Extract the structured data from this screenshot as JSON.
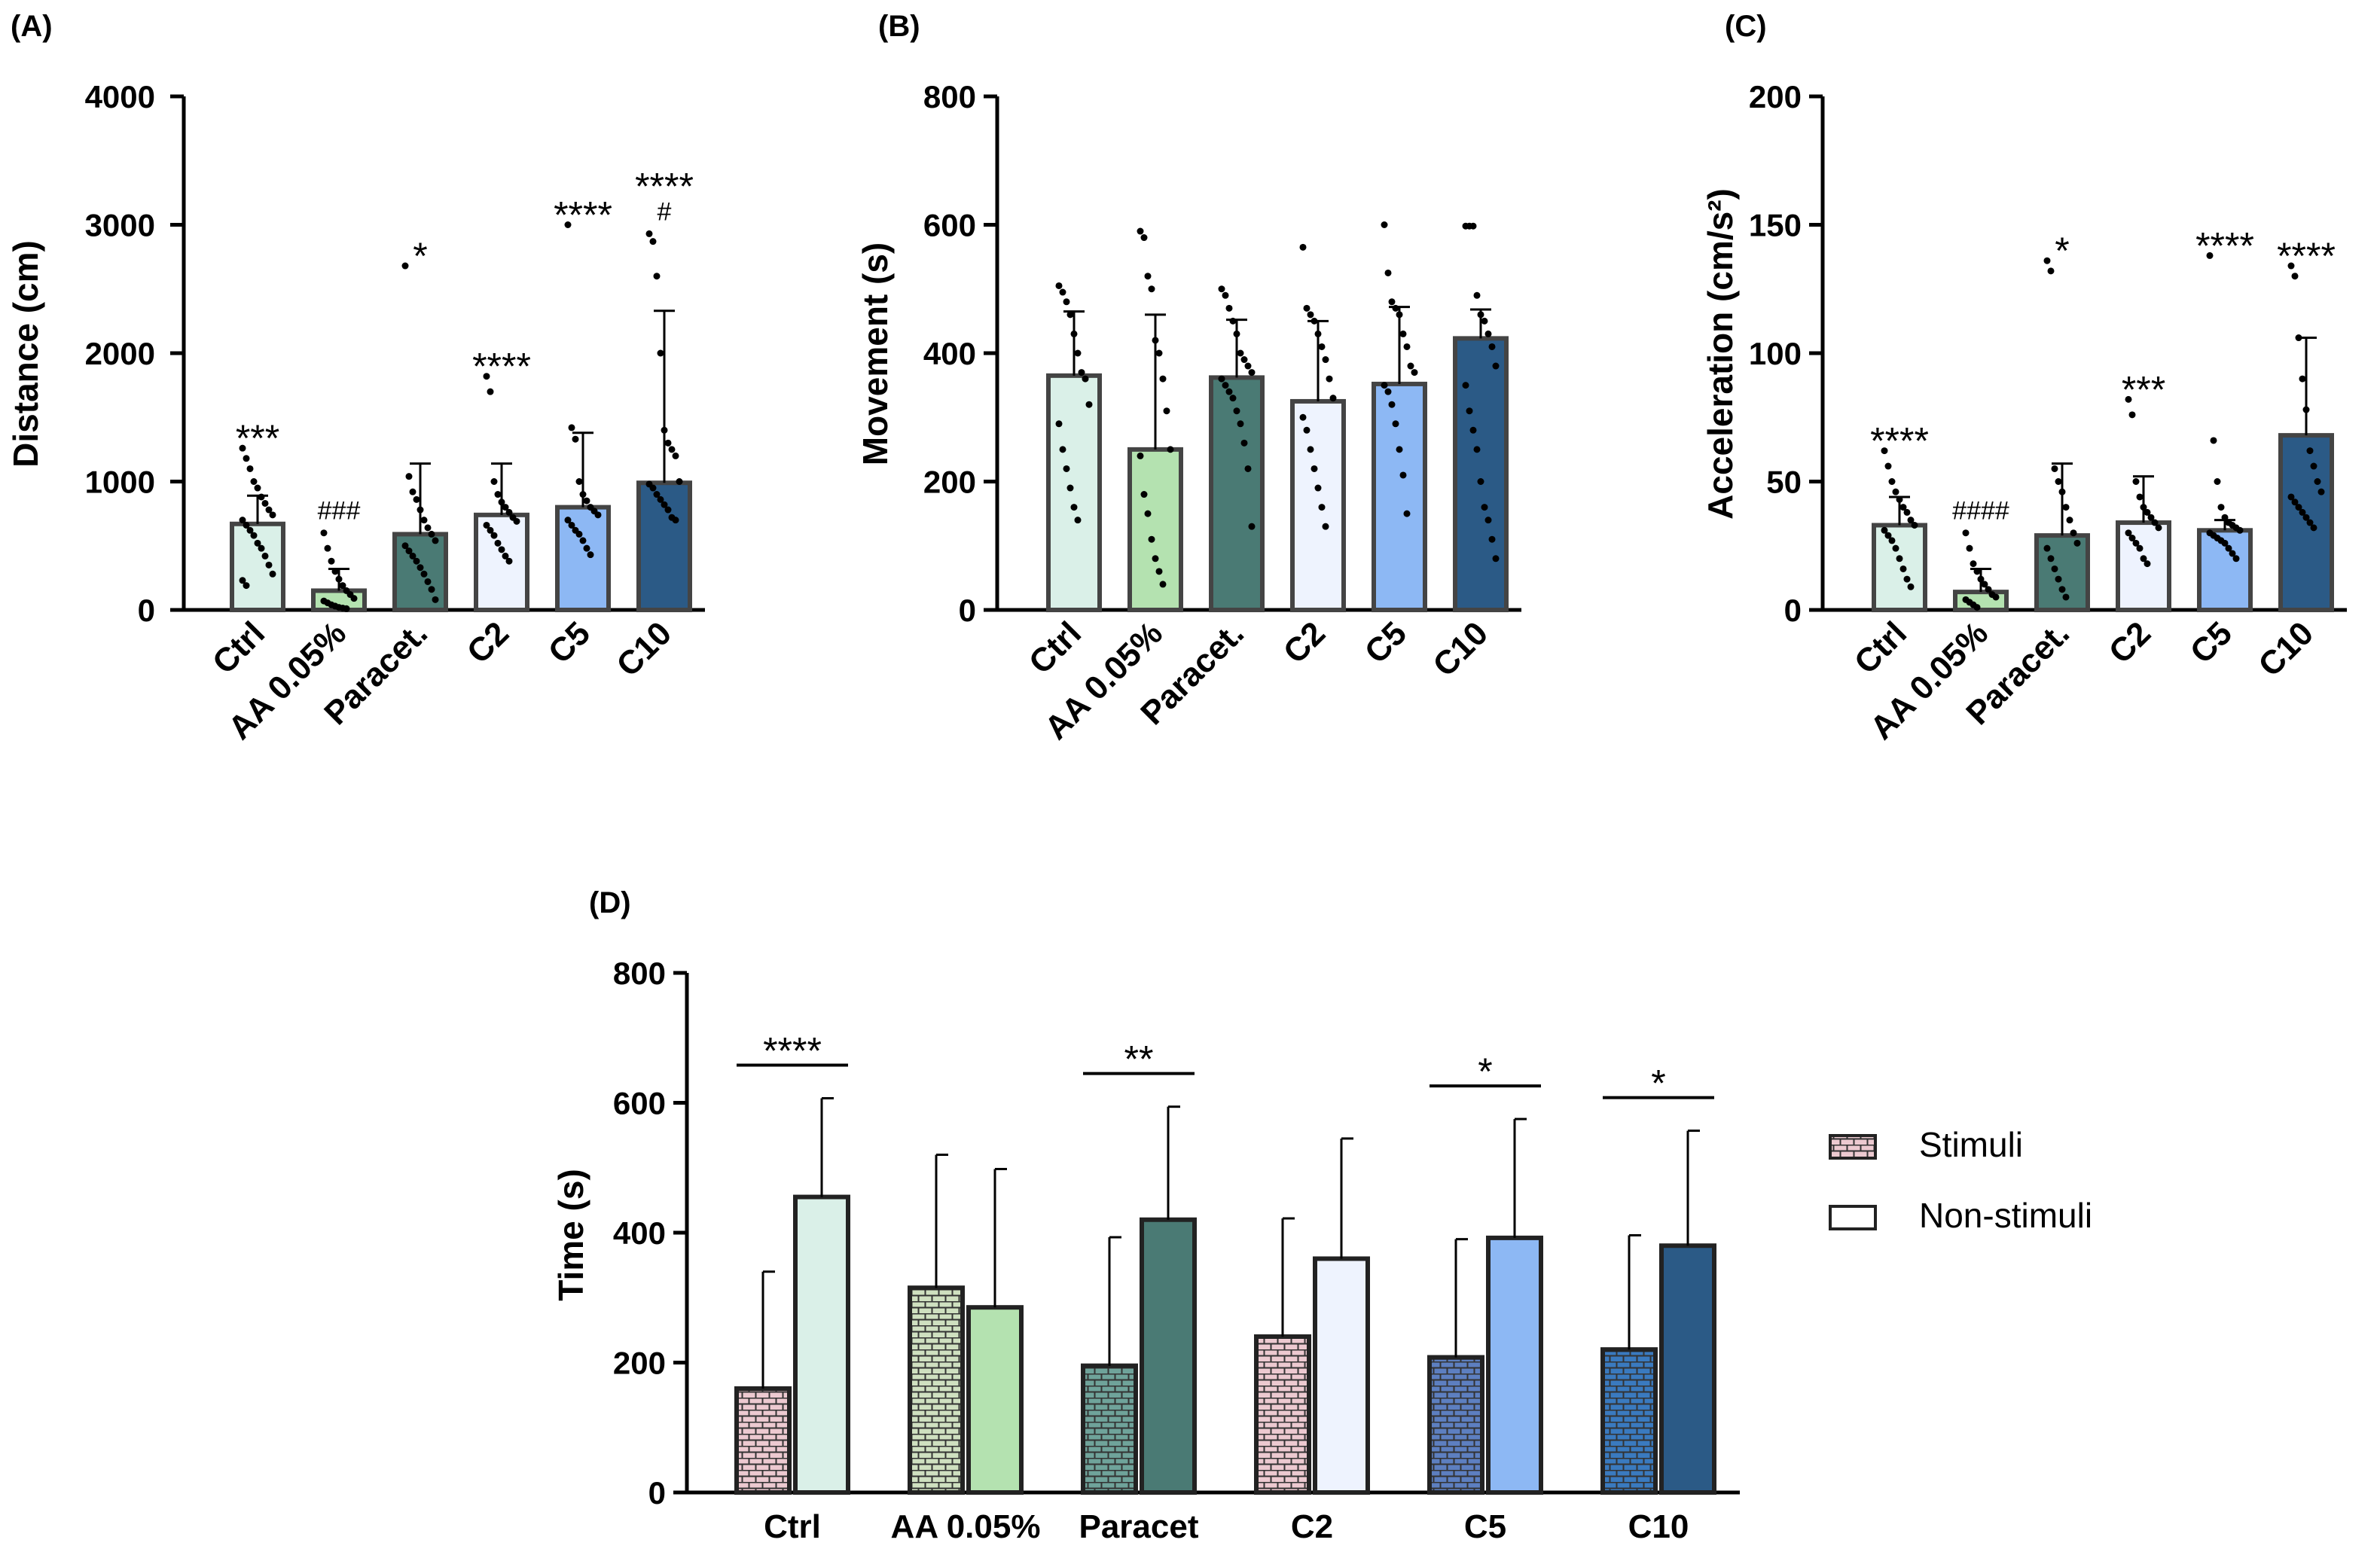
{
  "chart_data": [
    {
      "panel_label": "(A)",
      "type": "bar",
      "ylabel": "Distance (cm)",
      "ylim": [
        0,
        4000
      ],
      "yticks": [
        0,
        1000,
        2000,
        3000,
        4000
      ],
      "categories": [
        "Ctrl",
        "AA 0.05%",
        "Paracet.",
        "C2",
        "C5",
        "C10"
      ],
      "values": [
        670,
        150,
        590,
        740,
        800,
        990
      ],
      "sd": [
        220,
        170,
        550,
        400,
        580,
        1340
      ],
      "colors": [
        "#daf0e8",
        "#b4e2b0",
        "#4a7a74",
        "#eef3fe",
        "#8db8f4",
        "#2b5a86"
      ],
      "annotations": [
        [
          "***"
        ],
        [
          "###"
        ],
        [
          "*"
        ],
        [
          "****"
        ],
        [
          "****"
        ],
        [
          "****",
          "#"
        ]
      ],
      "points": [
        [
          1260,
          1180,
          1100,
          1000,
          950,
          880,
          830,
          780,
          740,
          700,
          660,
          620,
          580,
          520,
          480,
          420,
          350,
          280,
          230,
          190
        ],
        [
          600,
          480,
          380,
          300,
          240,
          190,
          150,
          120,
          90,
          70,
          55,
          40,
          30,
          20,
          15,
          10
        ],
        [
          2680,
          1040,
          920,
          860,
          780,
          700,
          640,
          590,
          540,
          500,
          460,
          420,
          380,
          330,
          280,
          220,
          160,
          80
        ],
        [
          1820,
          1700,
          1000,
          900,
          840,
          800,
          760,
          720,
          690,
          660,
          620,
          580,
          520,
          470,
          420,
          380
        ],
        [
          3000,
          1420,
          1330,
          1000,
          900,
          850,
          800,
          770,
          740,
          700,
          660,
          620,
          590,
          540,
          480,
          430
        ],
        [
          2930,
          2870,
          2600,
          2000,
          1400,
          1300,
          1250,
          1200,
          1000,
          980,
          950,
          900,
          860,
          820,
          780,
          720,
          700
        ]
      ]
    },
    {
      "panel_label": "(B)",
      "type": "bar",
      "ylabel": "Movement (s)",
      "ylim": [
        0,
        800
      ],
      "yticks": [
        0,
        200,
        400,
        600,
        800
      ],
      "categories": [
        "Ctrl",
        "AA 0.05%",
        "Paracet.",
        "C2",
        "C5",
        "C10"
      ],
      "values": [
        365,
        250,
        362,
        325,
        352,
        423
      ],
      "sd": [
        100,
        210,
        90,
        125,
        120,
        45
      ],
      "colors": [
        "#daf0e8",
        "#b4e2b0",
        "#4a7a74",
        "#eef3fe",
        "#8db8f4",
        "#2b5a86"
      ],
      "annotations": [
        [],
        [],
        [],
        [],
        [],
        []
      ],
      "points": [
        [
          505,
          495,
          480,
          460,
          430,
          400,
          370,
          360,
          320,
          290,
          250,
          220,
          190,
          160,
          140
        ],
        [
          590,
          580,
          520,
          500,
          420,
          400,
          360,
          310,
          250,
          240,
          180,
          150,
          110,
          80,
          60,
          40
        ],
        [
          500,
          490,
          470,
          450,
          430,
          400,
          390,
          380,
          370,
          360,
          350,
          340,
          330,
          310,
          290,
          260,
          220,
          130
        ],
        [
          565,
          470,
          460,
          450,
          430,
          410,
          390,
          360,
          330,
          300,
          280,
          250,
          220,
          190,
          160,
          130
        ],
        [
          600,
          525,
          480,
          470,
          460,
          430,
          410,
          380,
          370,
          350,
          340,
          320,
          290,
          250,
          210,
          150
        ],
        [
          598,
          598,
          598,
          490,
          460,
          450,
          430,
          410,
          380,
          350,
          310,
          280,
          250,
          200,
          160,
          140,
          110,
          80
        ]
      ]
    },
    {
      "panel_label": "(C)",
      "type": "bar",
      "ylabel": "Acceleration (cm/s²)",
      "ylim": [
        0,
        200
      ],
      "yticks": [
        0,
        50,
        100,
        150,
        200
      ],
      "categories": [
        "Ctrl",
        "AA 0.05%",
        "Paracet.",
        "C2",
        "C5",
        "C10"
      ],
      "values": [
        33,
        7,
        29,
        34,
        31,
        68
      ],
      "sd": [
        11,
        9,
        28,
        18,
        4,
        38
      ],
      "colors": [
        "#daf0e8",
        "#b4e2b0",
        "#4a7a74",
        "#eef3fe",
        "#8db8f4",
        "#2b5a86"
      ],
      "annotations": [
        [
          "****"
        ],
        [
          "####"
        ],
        [
          "*"
        ],
        [
          "***"
        ],
        [
          "****"
        ],
        [
          "****"
        ]
      ],
      "points": [
        [
          62,
          56,
          50,
          46,
          43,
          40,
          38,
          35,
          33,
          31,
          29,
          27,
          24,
          20,
          16,
          12,
          9
        ],
        [
          30,
          24,
          18,
          15,
          12,
          10,
          8,
          6,
          5,
          4,
          3,
          2,
          1
        ],
        [
          136,
          132,
          55,
          50,
          46,
          40,
          35,
          30,
          26,
          24,
          20,
          16,
          12,
          8,
          5
        ],
        [
          82,
          76,
          50,
          44,
          40,
          38,
          36,
          34,
          32,
          30,
          28,
          26,
          24,
          20,
          18
        ],
        [
          138,
          66,
          50,
          40,
          36,
          34,
          33,
          32,
          31,
          30,
          29,
          28,
          27,
          26,
          24,
          22,
          20
        ],
        [
          134,
          130,
          106,
          90,
          78,
          62,
          56,
          50,
          46,
          44,
          42,
          40,
          38,
          36,
          34,
          32
        ]
      ]
    },
    {
      "panel_label": "(D)",
      "type": "bar",
      "ylabel": "Time (s)",
      "ylim": [
        0,
        800
      ],
      "yticks": [
        0,
        200,
        400,
        600,
        800
      ],
      "categories": [
        "Ctrl",
        "AA 0.05%",
        "Paracet",
        "C2",
        "C5",
        "C10"
      ],
      "series": [
        {
          "name": "Stimuli",
          "values": [
            160,
            315,
            195,
            240,
            208,
            220
          ],
          "sd": [
            180,
            205,
            198,
            182,
            182,
            176
          ],
          "colors": [
            "#ecc9d0",
            "#cfe0c0",
            "#6fa39a",
            "#ecc9d0",
            "#5d7fc0",
            "#3a7abf"
          ]
        },
        {
          "name": "Non-stimuli",
          "values": [
            455,
            285,
            420,
            360,
            392,
            380
          ],
          "sd": [
            152,
            213,
            174,
            185,
            183,
            177
          ],
          "colors": [
            "#daf0e8",
            "#b4e2b0",
            "#4a7a74",
            "#eef3fe",
            "#8db8f4",
            "#2b5a86"
          ]
        }
      ],
      "significance": [
        "****",
        "",
        "**",
        "",
        "*",
        "*"
      ],
      "legend": [
        "Stimuli",
        "Non-stimuli"
      ]
    }
  ]
}
